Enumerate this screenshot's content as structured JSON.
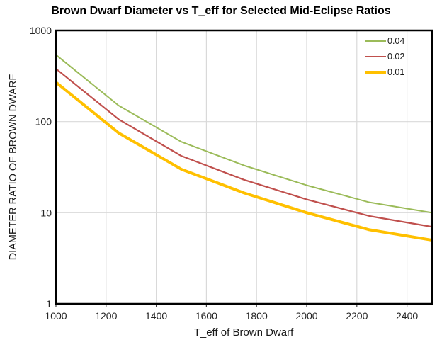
{
  "chart_data": {
    "type": "line",
    "title": "Brown Dwarf Diameter vs T_eff for Selected Mid-Eclipse Ratios",
    "xlabel": "T_eff of Brown Dwarf",
    "ylabel": "DIAMETER RATIO OF BROWN DWARF",
    "x": [
      1000,
      1250,
      1500,
      1750,
      2000,
      2250,
      2500
    ],
    "series": [
      {
        "name": "0.04",
        "color": "#9BBB59",
        "line_width": 2,
        "values": [
          540,
          150,
          60,
          33,
          20,
          13,
          10
        ]
      },
      {
        "name": "0.02",
        "color": "#C0504D",
        "line_width": 2.2,
        "values": [
          380,
          106,
          42,
          23,
          14,
          9.2,
          7
        ]
      },
      {
        "name": "0.01",
        "color": "#FFC000",
        "line_width": 4,
        "values": [
          270,
          75,
          30,
          16.5,
          10,
          6.5,
          5
        ]
      }
    ],
    "xlim": [
      1000,
      2500
    ],
    "ylim": [
      1,
      1000
    ],
    "y_scale": "log",
    "x_ticks": [
      1000,
      1200,
      1400,
      1600,
      1800,
      2000,
      2200,
      2400
    ],
    "y_ticks": [
      1,
      10,
      100,
      1000
    ],
    "grid": true,
    "legend_position": "top-right-inside",
    "colors": {
      "gridline": "#D9D9D9",
      "axis_border": "#000000",
      "tick_mark": "#404040",
      "tick_label": "#262626"
    }
  }
}
